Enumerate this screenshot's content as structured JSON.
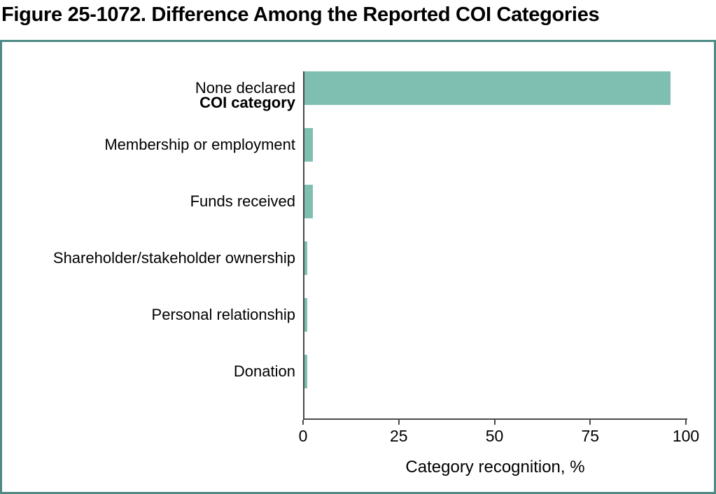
{
  "figure": {
    "title": "Figure 25-1072. Difference Among the Reported COI Categories"
  },
  "chart_data": {
    "type": "bar",
    "orientation": "horizontal",
    "group_label": "COI category",
    "categories": [
      "None declared",
      "Membership or employment",
      "Funds received",
      "Shareholder/stakeholder ownership",
      "Personal relationship",
      "Donation"
    ],
    "values": [
      96,
      2.5,
      2.6,
      1,
      1,
      1
    ],
    "xlabel": "Category recognition, %",
    "xticks": [
      "0",
      "25",
      "50",
      "75",
      "100"
    ],
    "xtick_values": [
      0,
      25,
      50,
      75,
      100
    ],
    "xlim": [
      0,
      100
    ],
    "grid": false,
    "legend_position": "none",
    "colors": {
      "bar": "#7fbfb2",
      "panel_border": "#4e8a84",
      "axis": "#4a4a4a",
      "text": "#000000",
      "background": "#ffffff"
    }
  }
}
